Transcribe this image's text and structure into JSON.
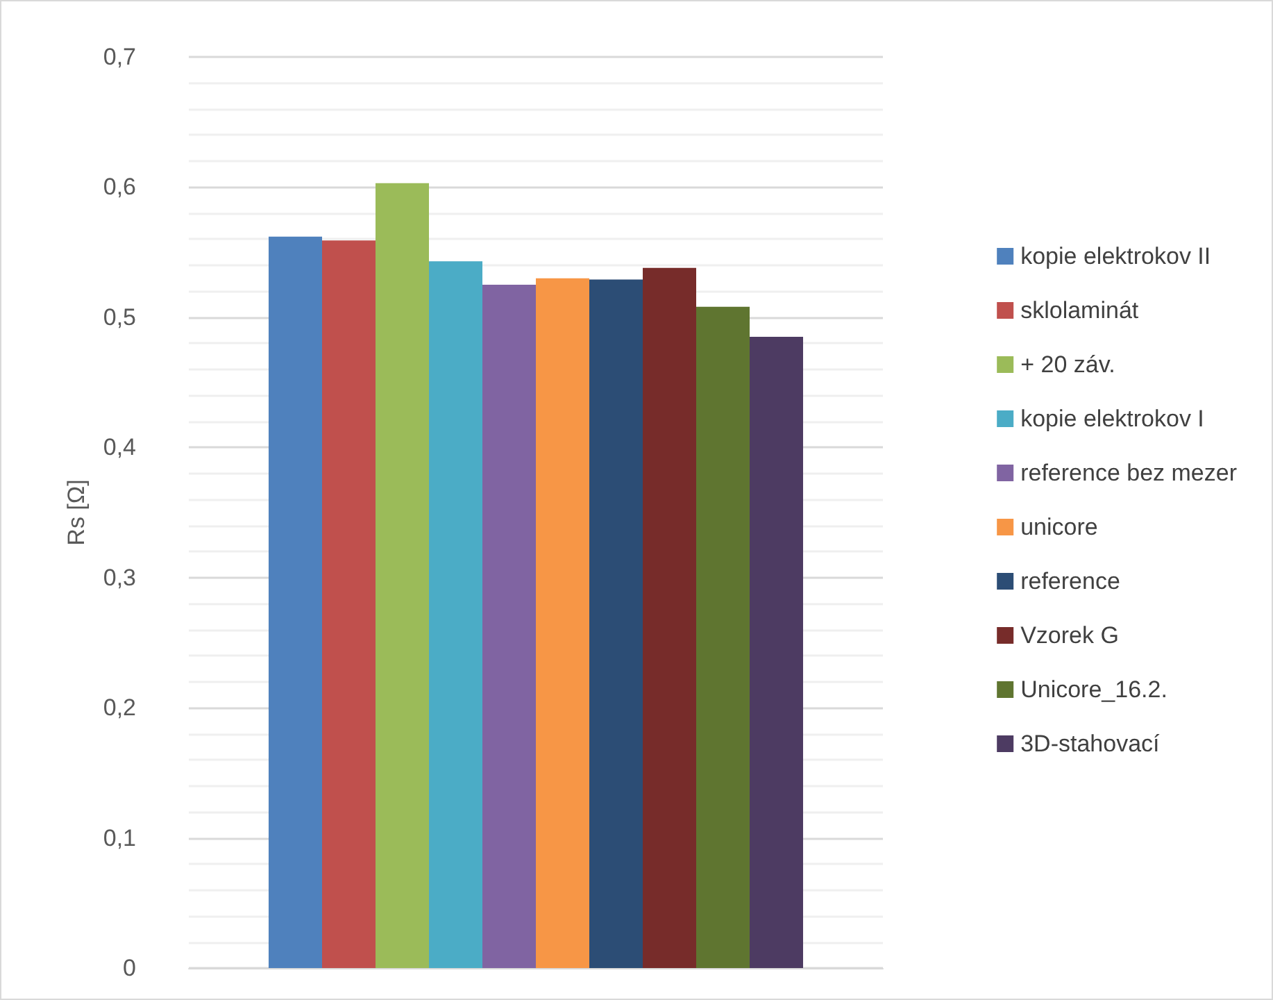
{
  "chart_data": {
    "type": "bar",
    "ylabel": "Rs [Ω]",
    "categories": [
      null
    ],
    "ylim": [
      0,
      0.7
    ],
    "yticks": [
      {
        "value": 0,
        "label": "0"
      },
      {
        "value": 0.1,
        "label": "0,1"
      },
      {
        "value": 0.2,
        "label": "0,2"
      },
      {
        "value": 0.3,
        "label": "0,3"
      },
      {
        "value": 0.4,
        "label": "0,4"
      },
      {
        "value": 0.5,
        "label": "0,5"
      },
      {
        "value": 0.6,
        "label": "0,6"
      },
      {
        "value": 0.7,
        "label": "0,7"
      }
    ],
    "grid": true,
    "legend": "right",
    "series": [
      {
        "name": "kopie elektrokov II",
        "color": "#4f81bd",
        "values": [
          0.562
        ]
      },
      {
        "name": "sklolaminát",
        "color": "#c0504d",
        "values": [
          0.559
        ]
      },
      {
        "name": "+ 20 záv.",
        "color": "#9bbb59",
        "values": [
          0.603
        ]
      },
      {
        "name": "kopie elektrokov I",
        "color": "#4bacc6",
        "values": [
          0.543
        ]
      },
      {
        "name": "reference bez mezer",
        "color": "#8064a2",
        "values": [
          0.525
        ]
      },
      {
        "name": "unicore",
        "color": "#f79646",
        "values": [
          0.53
        ]
      },
      {
        "name": "reference",
        "color": "#2c4d75",
        "values": [
          0.529
        ]
      },
      {
        "name": "Vzorek G",
        "color": "#772c2a",
        "values": [
          0.538
        ]
      },
      {
        "name": "Unicore_16.2.",
        "color": "#5f7530",
        "values": [
          0.508
        ]
      },
      {
        "name": "3D-stahovací",
        "color": "#4d3b62",
        "values": [
          0.485
        ]
      }
    ]
  }
}
